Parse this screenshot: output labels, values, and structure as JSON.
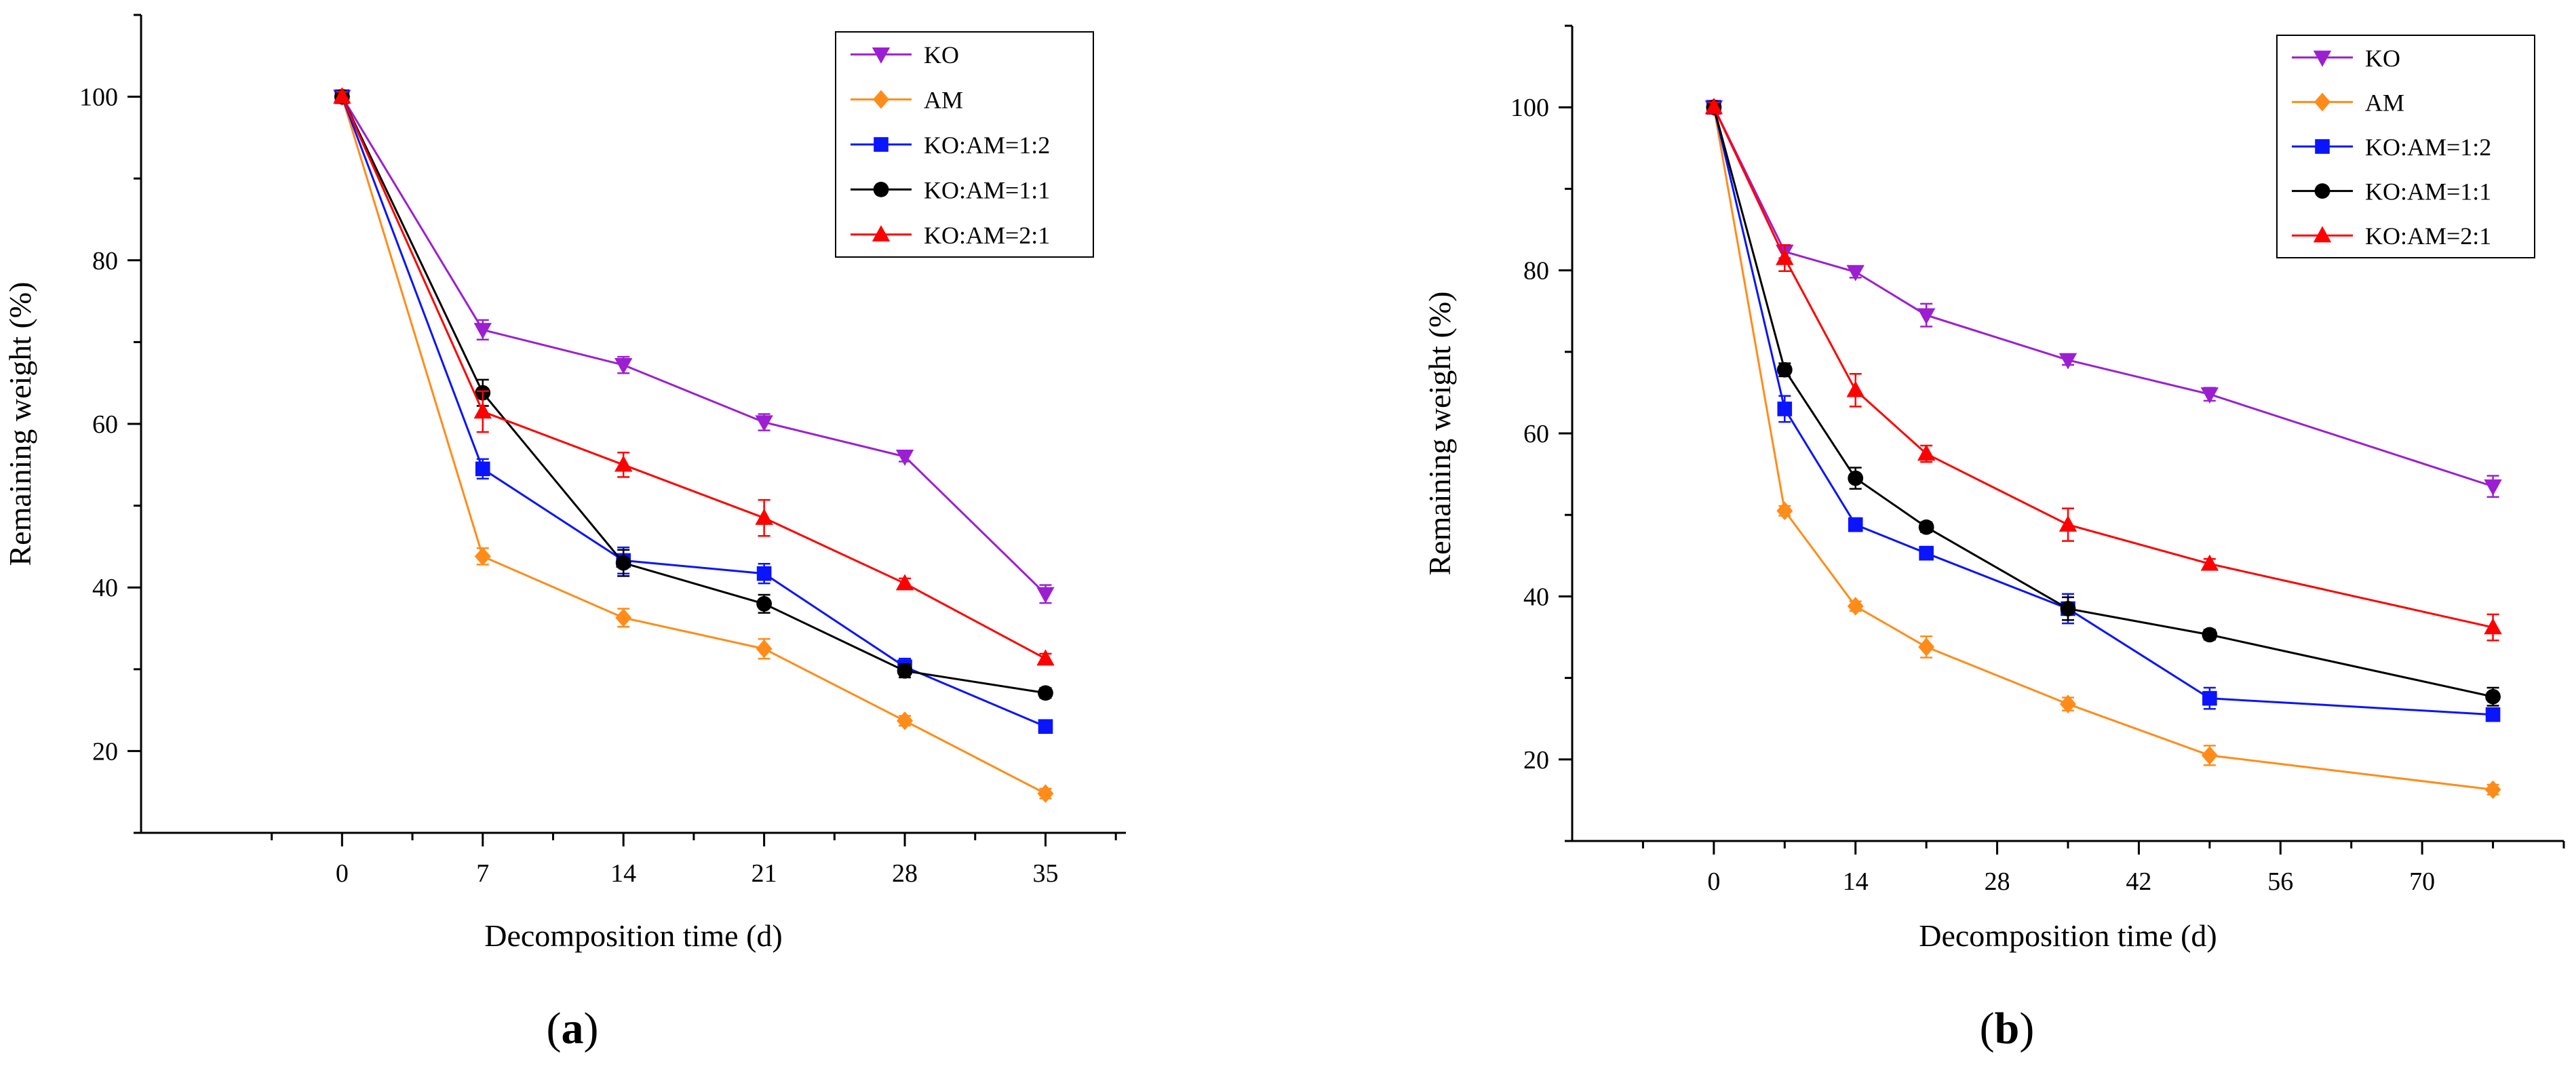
{
  "chart_data": [
    {
      "type": "line",
      "panel_label": "(a)",
      "panel_letter": "a",
      "xlabel": "Decomposition time (d)",
      "ylabel": "Remaining weight (%)",
      "xlim": [
        -10,
        39
      ],
      "ylim": [
        10,
        110
      ],
      "xticks": [
        0,
        7,
        14,
        21,
        28,
        35
      ],
      "yticks": [
        20,
        40,
        60,
        80,
        100
      ],
      "legend_position": "top-right",
      "series": [
        {
          "name": "KO",
          "color": "#9b1fd1",
          "marker": "triangle-down",
          "x": [
            0,
            7,
            14,
            21,
            28,
            35
          ],
          "y": [
            100,
            71.5,
            67.2,
            60.2,
            56.0,
            39.2
          ],
          "err": [
            0.6,
            1.2,
            1.0,
            1.0,
            0.6,
            1.1
          ]
        },
        {
          "name": "AM",
          "color": "#ff8c1a",
          "marker": "diamond",
          "x": [
            0,
            7,
            14,
            21,
            28,
            35
          ],
          "y": [
            100,
            43.8,
            36.3,
            32.5,
            23.7,
            14.8
          ],
          "err": [
            0.6,
            1.0,
            1.1,
            1.2,
            0.6,
            0.6
          ]
        },
        {
          "name": "KO:AM=1:2",
          "color": "#0a14ff",
          "marker": "square",
          "x": [
            0,
            7,
            14,
            21,
            28,
            35
          ],
          "y": [
            100,
            54.5,
            43.3,
            41.7,
            30.3,
            23.0
          ],
          "err": [
            0.6,
            1.2,
            1.6,
            1.2,
            1.0,
            0.6
          ]
        },
        {
          "name": "KO:AM=1:1",
          "color": "#000000",
          "marker": "circle",
          "x": [
            0,
            7,
            14,
            21,
            28,
            35
          ],
          "y": [
            100,
            63.8,
            43.0,
            38.0,
            29.8,
            27.1
          ],
          "err": [
            0.6,
            1.6,
            1.6,
            1.1,
            0.8,
            0.6
          ]
        },
        {
          "name": "KO:AM=2:1",
          "color": "#ff0000",
          "marker": "triangle-up",
          "x": [
            0,
            7,
            14,
            21,
            28,
            35
          ],
          "y": [
            100,
            61.5,
            55.0,
            48.5,
            40.5,
            31.3
          ],
          "err": [
            0.6,
            2.5,
            1.5,
            2.2,
            0.6,
            0.6
          ]
        }
      ]
    },
    {
      "type": "line",
      "panel_label": "(b)",
      "panel_letter": "b",
      "xlabel": "Decomposition time (d)",
      "ylabel": "Remaining weight (%)",
      "xlim": [
        -14,
        84
      ],
      "ylim": [
        10,
        110
      ],
      "xticks": [
        0,
        14,
        28,
        42,
        56,
        70
      ],
      "yticks": [
        20,
        40,
        60,
        80,
        100
      ],
      "legend_position": "top-right",
      "series": [
        {
          "name": "KO",
          "color": "#9b1fd1",
          "marker": "triangle-down",
          "x": [
            0,
            7,
            14,
            21,
            35,
            49,
            77
          ],
          "y": [
            100,
            82.3,
            79.8,
            74.5,
            69.0,
            64.8,
            53.5
          ],
          "err": [
            0.6,
            0.8,
            0.7,
            1.4,
            0.6,
            0.8,
            1.3
          ]
        },
        {
          "name": "AM",
          "color": "#ff8c1a",
          "marker": "diamond",
          "x": [
            0,
            7,
            14,
            21,
            35,
            49,
            77
          ],
          "y": [
            100,
            50.5,
            38.8,
            33.8,
            26.8,
            20.5,
            16.3
          ],
          "err": [
            0.6,
            0.6,
            0.6,
            1.3,
            0.8,
            1.2,
            0.6
          ]
        },
        {
          "name": "KO:AM=1:2",
          "color": "#0a14ff",
          "marker": "square",
          "x": [
            0,
            7,
            14,
            21,
            35,
            49,
            77
          ],
          "y": [
            100,
            63.0,
            48.8,
            45.3,
            38.5,
            27.5,
            25.5
          ],
          "err": [
            0.6,
            1.6,
            0.8,
            0.8,
            1.8,
            1.3,
            0.8
          ]
        },
        {
          "name": "KO:AM=1:1",
          "color": "#000000",
          "marker": "circle",
          "x": [
            0,
            7,
            14,
            21,
            35,
            49,
            77
          ],
          "y": [
            100,
            67.8,
            54.5,
            48.5,
            38.5,
            35.3,
            27.7
          ],
          "err": [
            0.6,
            0.8,
            1.3,
            0.6,
            1.4,
            0.6,
            1.1
          ]
        },
        {
          "name": "KO:AM=2:1",
          "color": "#ff0000",
          "marker": "triangle-up",
          "x": [
            0,
            7,
            14,
            21,
            35,
            49,
            77
          ],
          "y": [
            100,
            81.5,
            65.3,
            57.5,
            48.8,
            44.0,
            36.2
          ],
          "err": [
            0.6,
            1.6,
            2.0,
            1.0,
            2.0,
            0.6,
            1.6
          ]
        }
      ]
    }
  ]
}
